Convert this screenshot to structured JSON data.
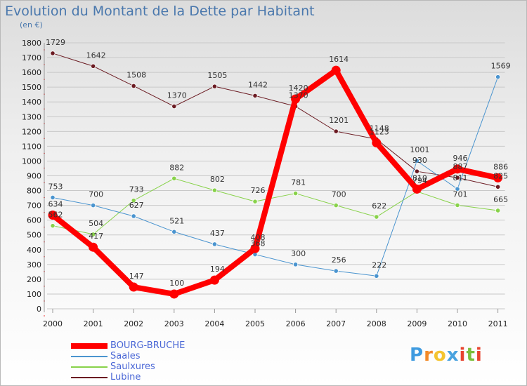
{
  "header": {
    "title": "Evolution du Montant de la Dette par Habitant",
    "subtitle": "(en €)"
  },
  "brand": {
    "letters": [
      {
        "ch": "P",
        "color": "#3f9be0"
      },
      {
        "ch": "r",
        "color": "#f28a2a"
      },
      {
        "ch": "o",
        "color": "#f4c430"
      },
      {
        "ch": "x",
        "color": "#4aa3df"
      },
      {
        "ch": "i",
        "color": "#e8442f"
      },
      {
        "ch": "t",
        "color": "#7bbf3a"
      },
      {
        "ch": "i",
        "color": "#e8442f"
      }
    ]
  },
  "chart_data": {
    "type": "line",
    "title": "Evolution du Montant de la Dette par Habitant",
    "subtitle": "(en €)",
    "xlabel": "",
    "ylabel": "",
    "x": [
      "2000",
      "2001",
      "2002",
      "2003",
      "2004",
      "2005",
      "2006",
      "2007",
      "2008",
      "2009",
      "2010",
      "2011"
    ],
    "ylim": [
      0,
      1800
    ],
    "yticks": [
      0,
      100,
      200,
      300,
      400,
      500,
      600,
      700,
      800,
      900,
      1000,
      1100,
      1200,
      1300,
      1400,
      1500,
      1600,
      1700,
      1800
    ],
    "grid": "horizontal",
    "legend_position": "bottom-left",
    "series": [
      {
        "name": "Lubine",
        "color": "#6b1b22",
        "width": 1,
        "dot": 3.2,
        "label_offset": -12,
        "values": [
          1729,
          1642,
          1508,
          1370,
          1505,
          1442,
          1370,
          1201,
          1148,
          930,
          887,
          825
        ],
        "labels": [
          "1729",
          "1642",
          "1508",
          "1370",
          "1505",
          "1442",
          "1370",
          "1201",
          "1148",
          "930",
          "887",
          "825"
        ]
      },
      {
        "name": "Saulxures",
        "color": "#88d24a",
        "width": 1,
        "dot": 3.2,
        "label_offset": -12,
        "values": [
          562,
          504,
          733,
          882,
          802,
          726,
          781,
          700,
          622,
          794,
          701,
          665
        ],
        "labels": [
          "562",
          "504",
          "733",
          "882",
          "802",
          "726",
          "781",
          "700",
          "622",
          "794",
          "701",
          "665"
        ]
      },
      {
        "name": "Saales",
        "color": "#4a94cf",
        "width": 1,
        "dot": 3.2,
        "label_offset": -12,
        "values": [
          753,
          700,
          627,
          521,
          437,
          368,
          300,
          256,
          222,
          1001,
          811,
          1569
        ],
        "labels": [
          "753",
          "700",
          "627",
          "521",
          "437",
          "368",
          "300",
          "256",
          "222",
          "1001",
          "811",
          "1569"
        ]
      },
      {
        "name": "BOURG-BRUCHE",
        "color": "#ff0000",
        "width": 8,
        "dot": 6.5,
        "label_offset": -12,
        "values": [
          634,
          417,
          147,
          100,
          194,
          408,
          1420,
          1614,
          1123,
          810,
          946,
          886
        ],
        "labels": [
          "634",
          "417",
          "147",
          "100",
          "194",
          "408",
          "1420",
          "1614",
          "1123",
          "810",
          "946",
          "886"
        ]
      }
    ],
    "legend": [
      "BOURG-BRUCHE",
      "Saales",
      "Saulxures",
      "Lubine"
    ]
  }
}
